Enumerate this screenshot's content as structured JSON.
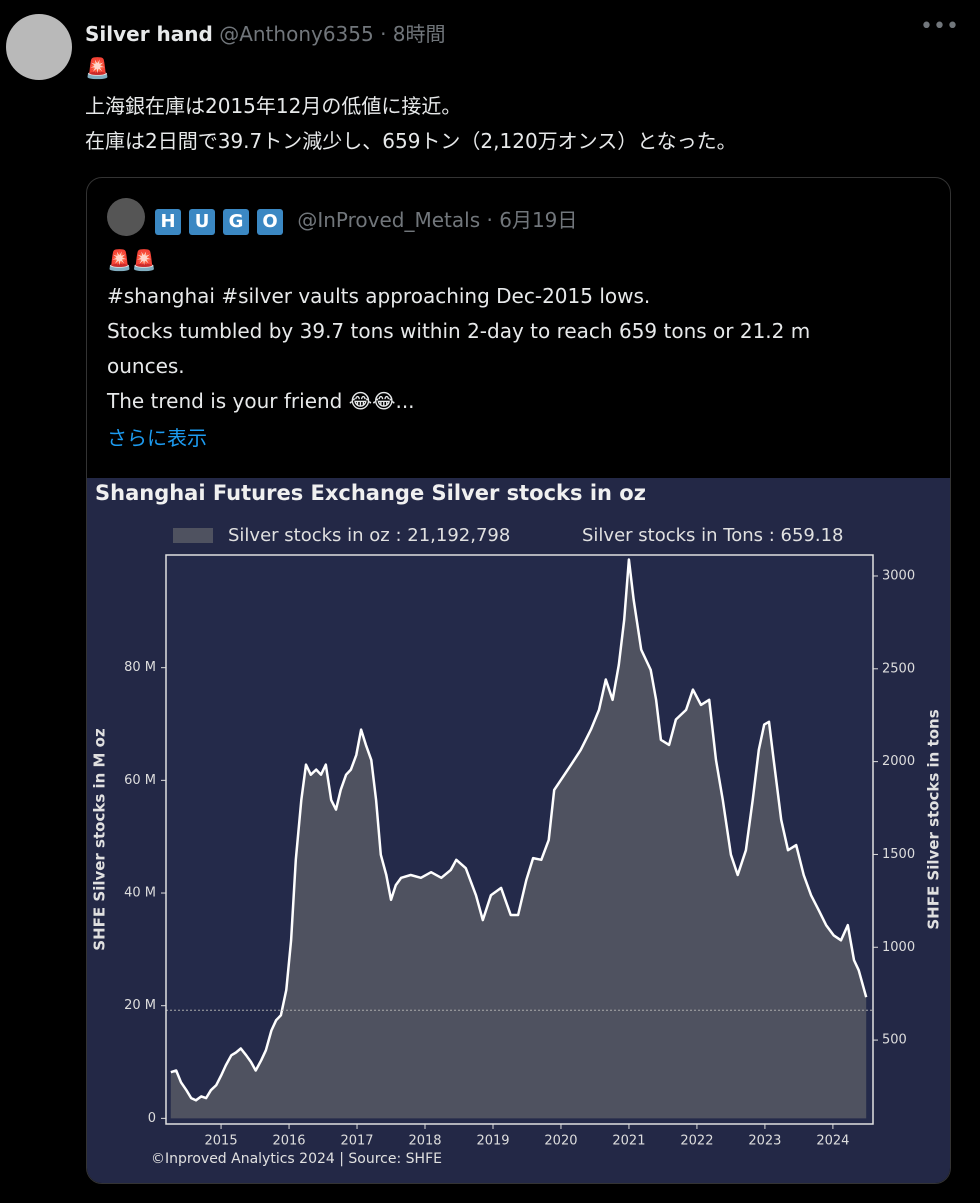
{
  "tweet": {
    "name": "Silver hand",
    "handle": "@Anthony6355",
    "time": "· 8時間",
    "emoji": "🚨",
    "lines": [
      "上海銀在庫は2015年12月の低値に接近。",
      "在庫は2日間で39.7トン減少し、659トン（2,120万オンス）となった。"
    ]
  },
  "quote": {
    "name_letters": [
      "H",
      "U",
      "G",
      "O"
    ],
    "handle": "@InProved_Metals",
    "time": "· 6月19日",
    "emoji": "🚨🚨",
    "lines": [
      "#shanghai #silver vaults approaching Dec-2015 lows.",
      "Stocks tumbled by 39.7 tons within 2-day to reach 659 tons or 21.2 m",
      "ounces.",
      "The trend is your friend 😂😂..."
    ],
    "more": "さらに表示"
  },
  "chart_data": {
    "type": "area",
    "title": "Shanghai Futures Exchange Silver stocks in oz",
    "legend_note": "Silver stocks in Tons : 659.18",
    "ylabel": "SHFE Silver stocks in M oz",
    "y2label": "SHFE Silver stocks in tons",
    "footer": "©Inproved Analytics 2024 | Source: SHFE",
    "xlim": [
      2014.19,
      2024.59
    ],
    "xticks": [
      2015,
      2016,
      2017,
      2018,
      2019,
      2020,
      2021,
      2022,
      2023,
      2024
    ],
    "ylim": [
      -1,
      100
    ],
    "yticks": [
      0,
      {
        "value": 20,
        "label": "20 M"
      },
      {
        "value": 40,
        "label": "40 M"
      },
      {
        "value": 60,
        "label": "60 M"
      },
      {
        "value": 80,
        "label": "80 M"
      }
    ],
    "y2lim": [
      48,
      3113
    ],
    "y2ticks": [
      500,
      1000,
      1500,
      2000,
      2500,
      3000
    ],
    "reference_line": 19.2,
    "x": [
      2014.26,
      2014.34,
      2014.41,
      2014.49,
      2014.56,
      2014.63,
      2014.71,
      2014.78,
      2014.85,
      2014.93,
      2015.0,
      2015.07,
      2015.15,
      2015.22,
      2015.29,
      2015.37,
      2015.44,
      2015.51,
      2015.59,
      2015.66,
      2015.74,
      2015.81,
      2015.88,
      2015.96,
      2016.03,
      2016.1,
      2016.18,
      2016.25,
      2016.32,
      2016.4,
      2016.47,
      2016.54,
      2016.62,
      2016.69,
      2016.76,
      2016.84,
      2016.91,
      2016.99,
      2017.06,
      2017.13,
      2017.21,
      2017.28,
      2017.35,
      2017.43,
      2017.5,
      2017.57,
      2017.65,
      2017.79,
      2017.94,
      2018.09,
      2018.24,
      2018.38,
      2018.46,
      2018.6,
      2018.75,
      2018.85,
      2018.97,
      2019.12,
      2019.26,
      2019.37,
      2019.49,
      2019.59,
      2019.71,
      2019.82,
      2019.9,
      2020.0,
      2020.15,
      2020.29,
      2020.44,
      2020.56,
      2020.66,
      2020.76,
      2020.85,
      2020.93,
      2021.0,
      2021.07,
      2021.18,
      2021.32,
      2021.4,
      2021.47,
      2021.59,
      2021.69,
      2021.84,
      2021.94,
      2022.06,
      2022.18,
      2022.28,
      2022.38,
      2022.5,
      2022.6,
      2022.72,
      2022.82,
      2022.91,
      2022.99,
      2023.06,
      2023.13,
      2023.24,
      2023.34,
      2023.46,
      2023.57,
      2023.68,
      2023.79,
      2023.9,
      2024.01,
      2024.12,
      2024.22,
      2024.31,
      2024.38,
      2024.49
    ],
    "series": [
      {
        "name": "Silver stocks in oz : 21,192,798",
        "color": "#ffffff",
        "fill": "#4f5260",
        "values": [
          8.2,
          8.5,
          6.4,
          5.0,
          3.6,
          3.2,
          3.9,
          3.6,
          5.0,
          5.9,
          7.6,
          9.4,
          11.2,
          11.7,
          12.4,
          11.2,
          10.0,
          8.5,
          10.3,
          12.1,
          15.6,
          17.4,
          18.3,
          22.8,
          31.6,
          45.9,
          56.5,
          62.8,
          61.0,
          61.9,
          61.0,
          62.8,
          56.5,
          54.8,
          58.3,
          61.0,
          61.9,
          64.5,
          69.0,
          66.3,
          63.6,
          56.5,
          46.8,
          43.2,
          38.8,
          41.4,
          42.7,
          43.2,
          42.7,
          43.7,
          42.7,
          44.1,
          45.9,
          44.4,
          39.6,
          35.2,
          39.6,
          40.9,
          36.1,
          36.1,
          42.3,
          46.2,
          45.9,
          49.4,
          58.3,
          60.1,
          62.8,
          65.4,
          69.0,
          72.5,
          77.9,
          74.3,
          80.5,
          88.5,
          99.2,
          92.0,
          83.2,
          79.6,
          74.3,
          67.2,
          66.3,
          70.8,
          72.5,
          76.1,
          73.4,
          74.3,
          63.6,
          56.5,
          46.8,
          43.2,
          47.6,
          56.5,
          65.4,
          69.9,
          70.4,
          63.6,
          53.0,
          47.6,
          48.5,
          43.2,
          39.6,
          37.0,
          34.3,
          32.5,
          31.6,
          34.3,
          28.1,
          26.3,
          21.5
        ]
      }
    ]
  }
}
